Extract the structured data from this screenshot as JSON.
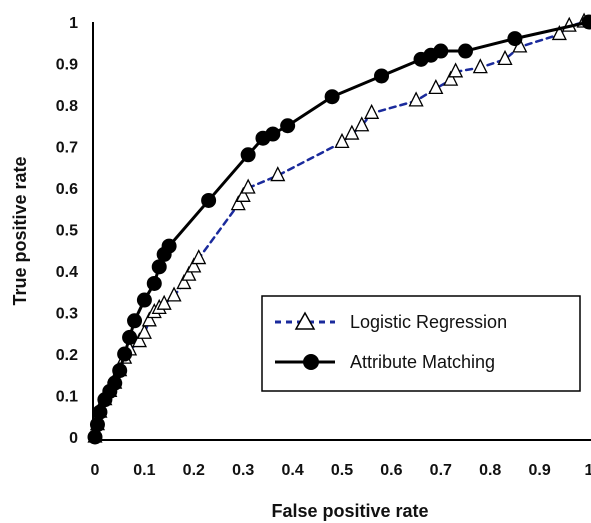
{
  "chart_data": {
    "type": "line",
    "xlabel": "False positive rate",
    "ylabel": "True positive rate",
    "xlim": [
      0,
      1
    ],
    "ylim": [
      0,
      1
    ],
    "x_ticks": [
      "0",
      "0.1",
      "0.2",
      "0.3",
      "0.4",
      "0.5",
      "0.6",
      "0.7",
      "0.8",
      "0.9",
      "1"
    ],
    "y_ticks": [
      "0",
      "0.1",
      "0.2",
      "0.3",
      "0.4",
      "0.5",
      "0.6",
      "0.7",
      "0.8",
      "0.9",
      "1"
    ],
    "grid": false,
    "legend_position": "bottom-right",
    "series": [
      {
        "name": "Logistic Regression",
        "color": "#1a2a9c",
        "line_style": "dashed",
        "marker": "open-triangle",
        "points": [
          [
            0.0,
            0.0
          ],
          [
            0.005,
            0.03
          ],
          [
            0.01,
            0.06
          ],
          [
            0.02,
            0.09
          ],
          [
            0.03,
            0.11
          ],
          [
            0.04,
            0.13
          ],
          [
            0.05,
            0.16
          ],
          [
            0.06,
            0.19
          ],
          [
            0.07,
            0.21
          ],
          [
            0.09,
            0.23
          ],
          [
            0.1,
            0.25
          ],
          [
            0.11,
            0.28
          ],
          [
            0.12,
            0.3
          ],
          [
            0.13,
            0.31
          ],
          [
            0.14,
            0.32
          ],
          [
            0.16,
            0.34
          ],
          [
            0.18,
            0.37
          ],
          [
            0.19,
            0.39
          ],
          [
            0.2,
            0.41
          ],
          [
            0.21,
            0.43
          ],
          [
            0.29,
            0.56
          ],
          [
            0.3,
            0.58
          ],
          [
            0.31,
            0.6
          ],
          [
            0.37,
            0.63
          ],
          [
            0.5,
            0.71
          ],
          [
            0.52,
            0.73
          ],
          [
            0.54,
            0.75
          ],
          [
            0.56,
            0.78
          ],
          [
            0.65,
            0.81
          ],
          [
            0.69,
            0.84
          ],
          [
            0.72,
            0.86
          ],
          [
            0.73,
            0.88
          ],
          [
            0.78,
            0.89
          ],
          [
            0.83,
            0.91
          ],
          [
            0.86,
            0.94
          ],
          [
            0.94,
            0.97
          ],
          [
            0.96,
            0.99
          ],
          [
            0.99,
            1.0
          ]
        ]
      },
      {
        "name": "Attribute Matching",
        "color": "#000000",
        "line_style": "solid",
        "marker": "filled-circle",
        "points": [
          [
            0.0,
            0.0
          ],
          [
            0.005,
            0.03
          ],
          [
            0.01,
            0.06
          ],
          [
            0.02,
            0.09
          ],
          [
            0.03,
            0.11
          ],
          [
            0.04,
            0.13
          ],
          [
            0.05,
            0.16
          ],
          [
            0.06,
            0.2
          ],
          [
            0.07,
            0.24
          ],
          [
            0.08,
            0.28
          ],
          [
            0.1,
            0.33
          ],
          [
            0.12,
            0.37
          ],
          [
            0.13,
            0.41
          ],
          [
            0.14,
            0.44
          ],
          [
            0.15,
            0.46
          ],
          [
            0.23,
            0.57
          ],
          [
            0.31,
            0.68
          ],
          [
            0.34,
            0.72
          ],
          [
            0.36,
            0.73
          ],
          [
            0.39,
            0.75
          ],
          [
            0.48,
            0.82
          ],
          [
            0.58,
            0.87
          ],
          [
            0.66,
            0.91
          ],
          [
            0.68,
            0.92
          ],
          [
            0.7,
            0.93
          ],
          [
            0.75,
            0.93
          ],
          [
            0.85,
            0.96
          ],
          [
            1.0,
            1.0
          ]
        ]
      }
    ]
  }
}
